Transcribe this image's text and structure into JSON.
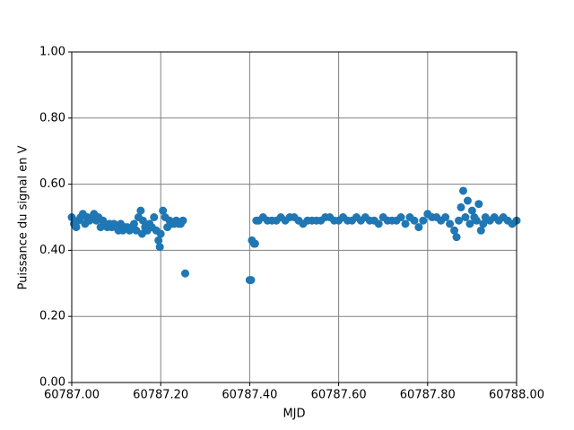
{
  "chart_data": {
    "type": "scatter",
    "xlabel": "MJD",
    "ylabel": "Puissance du signal en V",
    "color": "#1f77b4",
    "grid": true,
    "xlim": [
      60787.0,
      60788.0
    ],
    "xticks": [
      {
        "value": 60787.0,
        "label": "60787.00"
      },
      {
        "value": 60787.2,
        "label": "60787.20"
      },
      {
        "value": 60787.4,
        "label": "60787.40"
      },
      {
        "value": 60787.6,
        "label": "60787.60"
      },
      {
        "value": 60787.8,
        "label": "60787.80"
      },
      {
        "value": 60788.0,
        "label": "60788.00"
      }
    ],
    "ylim": [
      0,
      1
    ],
    "yticks": [
      {
        "value": 0,
        "label": "0.00"
      },
      {
        "value": 0.2,
        "label": "0.20"
      },
      {
        "value": 0.4,
        "label": "0.40"
      },
      {
        "value": 0.6,
        "label": "0.60"
      },
      {
        "value": 0.8,
        "label": "0.80"
      },
      {
        "value": 1,
        "label": "1.00"
      }
    ],
    "x": [
      60787.0,
      60787.005,
      60787.01,
      60787.015,
      60787.02,
      60787.025,
      60787.03,
      60787.035,
      60787.04,
      60787.045,
      60787.05,
      60787.055,
      60787.06,
      60787.065,
      60787.07,
      60787.075,
      60787.08,
      60787.085,
      60787.09,
      60787.095,
      60787.1,
      60787.105,
      60787.11,
      60787.115,
      60787.12,
      60787.125,
      60787.13,
      60787.135,
      60787.14,
      60787.145,
      60787.15,
      60787.155,
      60787.158,
      60787.16,
      60787.165,
      60787.17,
      60787.175,
      60787.18,
      60787.185,
      60787.19,
      60787.195,
      60787.198,
      60787.2,
      60787.205,
      60787.21,
      60787.215,
      60787.22,
      60787.225,
      60787.23,
      60787.235,
      60787.24,
      60787.245,
      60787.25,
      60787.255,
      60787.4,
      60787.403,
      60787.405,
      60787.41,
      60787.412,
      60787.415,
      60787.42,
      60787.43,
      60787.44,
      60787.45,
      60787.46,
      60787.47,
      60787.48,
      60787.49,
      60787.5,
      60787.51,
      60787.52,
      60787.53,
      60787.54,
      60787.55,
      60787.56,
      60787.57,
      60787.58,
      60787.59,
      60787.6,
      60787.61,
      60787.62,
      60787.63,
      60787.64,
      60787.65,
      60787.66,
      60787.67,
      60787.68,
      60787.69,
      60787.7,
      60787.71,
      60787.72,
      60787.73,
      60787.74,
      60787.75,
      60787.76,
      60787.77,
      60787.78,
      60787.79,
      60787.8,
      60787.81,
      60787.82,
      60787.83,
      60787.84,
      60787.85,
      60787.86,
      60787.865,
      60787.87,
      60787.875,
      60787.88,
      60787.885,
      60787.89,
      60787.895,
      60787.9,
      60787.905,
      60787.91,
      60787.915,
      60787.92,
      60787.925,
      60787.93,
      60787.94,
      60787.95,
      60787.96,
      60787.97,
      60787.98,
      60787.99,
      60788.0
    ],
    "values": [
      0.5,
      0.48,
      0.47,
      0.49,
      0.5,
      0.51,
      0.48,
      0.5,
      0.49,
      0.5,
      0.51,
      0.49,
      0.5,
      0.47,
      0.49,
      0.48,
      0.47,
      0.48,
      0.47,
      0.48,
      0.47,
      0.46,
      0.48,
      0.46,
      0.47,
      0.47,
      0.46,
      0.47,
      0.48,
      0.46,
      0.5,
      0.52,
      0.45,
      0.49,
      0.47,
      0.46,
      0.48,
      0.47,
      0.5,
      0.46,
      0.43,
      0.41,
      0.45,
      0.52,
      0.5,
      0.47,
      0.49,
      0.48,
      0.48,
      0.49,
      0.48,
      0.48,
      0.49,
      0.33,
      0.31,
      0.31,
      0.43,
      0.42,
      0.42,
      0.49,
      0.49,
      0.5,
      0.49,
      0.49,
      0.49,
      0.5,
      0.49,
      0.5,
      0.5,
      0.49,
      0.48,
      0.49,
      0.49,
      0.49,
      0.49,
      0.5,
      0.5,
      0.49,
      0.49,
      0.5,
      0.49,
      0.49,
      0.5,
      0.49,
      0.5,
      0.49,
      0.49,
      0.48,
      0.5,
      0.49,
      0.49,
      0.49,
      0.5,
      0.48,
      0.5,
      0.49,
      0.47,
      0.49,
      0.51,
      0.5,
      0.5,
      0.49,
      0.5,
      0.48,
      0.46,
      0.44,
      0.49,
      0.53,
      0.58,
      0.5,
      0.55,
      0.48,
      0.52,
      0.5,
      0.49,
      0.54,
      0.46,
      0.48,
      0.5,
      0.49,
      0.5,
      0.49,
      0.5,
      0.49,
      0.48,
      0.49
    ]
  }
}
